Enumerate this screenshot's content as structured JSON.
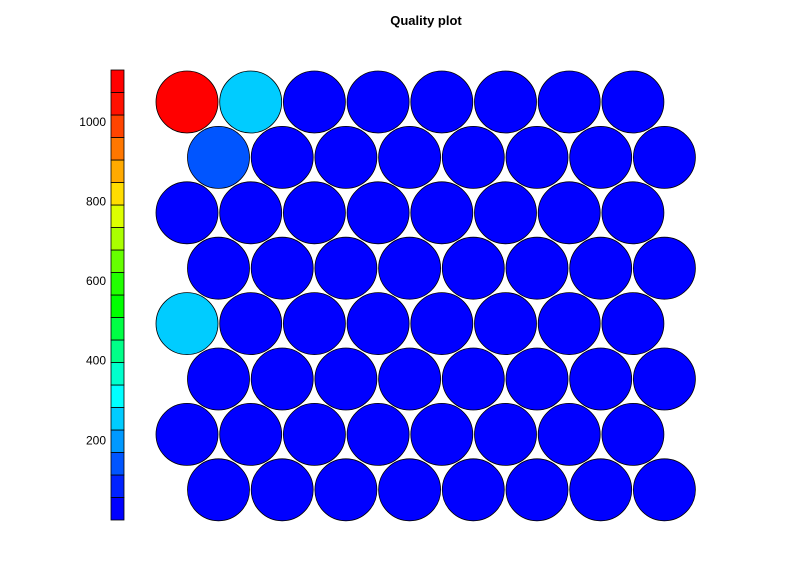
{
  "chart_data": {
    "type": "heatmap",
    "title": "Quality plot",
    "grid_layout": "hexagonal",
    "rows": 8,
    "columns": 8,
    "colorbar": {
      "range": [
        0,
        1130
      ],
      "ticks": [
        200,
        400,
        600,
        800,
        1000
      ],
      "tick_labels": [
        "200",
        "400",
        "600",
        "800",
        "1000"
      ],
      "placement": "left",
      "colors": [
        "#0000ff",
        "#0022ff",
        "#0055ff",
        "#0099ff",
        "#00ccff",
        "#00ffff",
        "#00ffcc",
        "#00ff88",
        "#00ff44",
        "#00ff00",
        "#22ff00",
        "#66ff00",
        "#aaff00",
        "#ddff00",
        "#ffdd00",
        "#ffaa00",
        "#ff7700",
        "#ff4400",
        "#ff1100",
        "#ff0000"
      ]
    },
    "values": [
      [
        1130,
        230,
        10,
        10,
        10,
        10,
        10,
        10
      ],
      [
        120,
        10,
        10,
        10,
        10,
        10,
        10,
        10
      ],
      [
        10,
        10,
        10,
        10,
        10,
        10,
        10,
        10
      ],
      [
        10,
        10,
        10,
        10,
        10,
        10,
        10,
        10
      ],
      [
        230,
        10,
        10,
        10,
        10,
        10,
        10,
        10
      ],
      [
        10,
        10,
        10,
        10,
        10,
        10,
        10,
        10
      ],
      [
        10,
        10,
        10,
        10,
        10,
        10,
        10,
        10
      ],
      [
        10,
        10,
        10,
        10,
        10,
        10,
        10,
        10
      ]
    ]
  }
}
